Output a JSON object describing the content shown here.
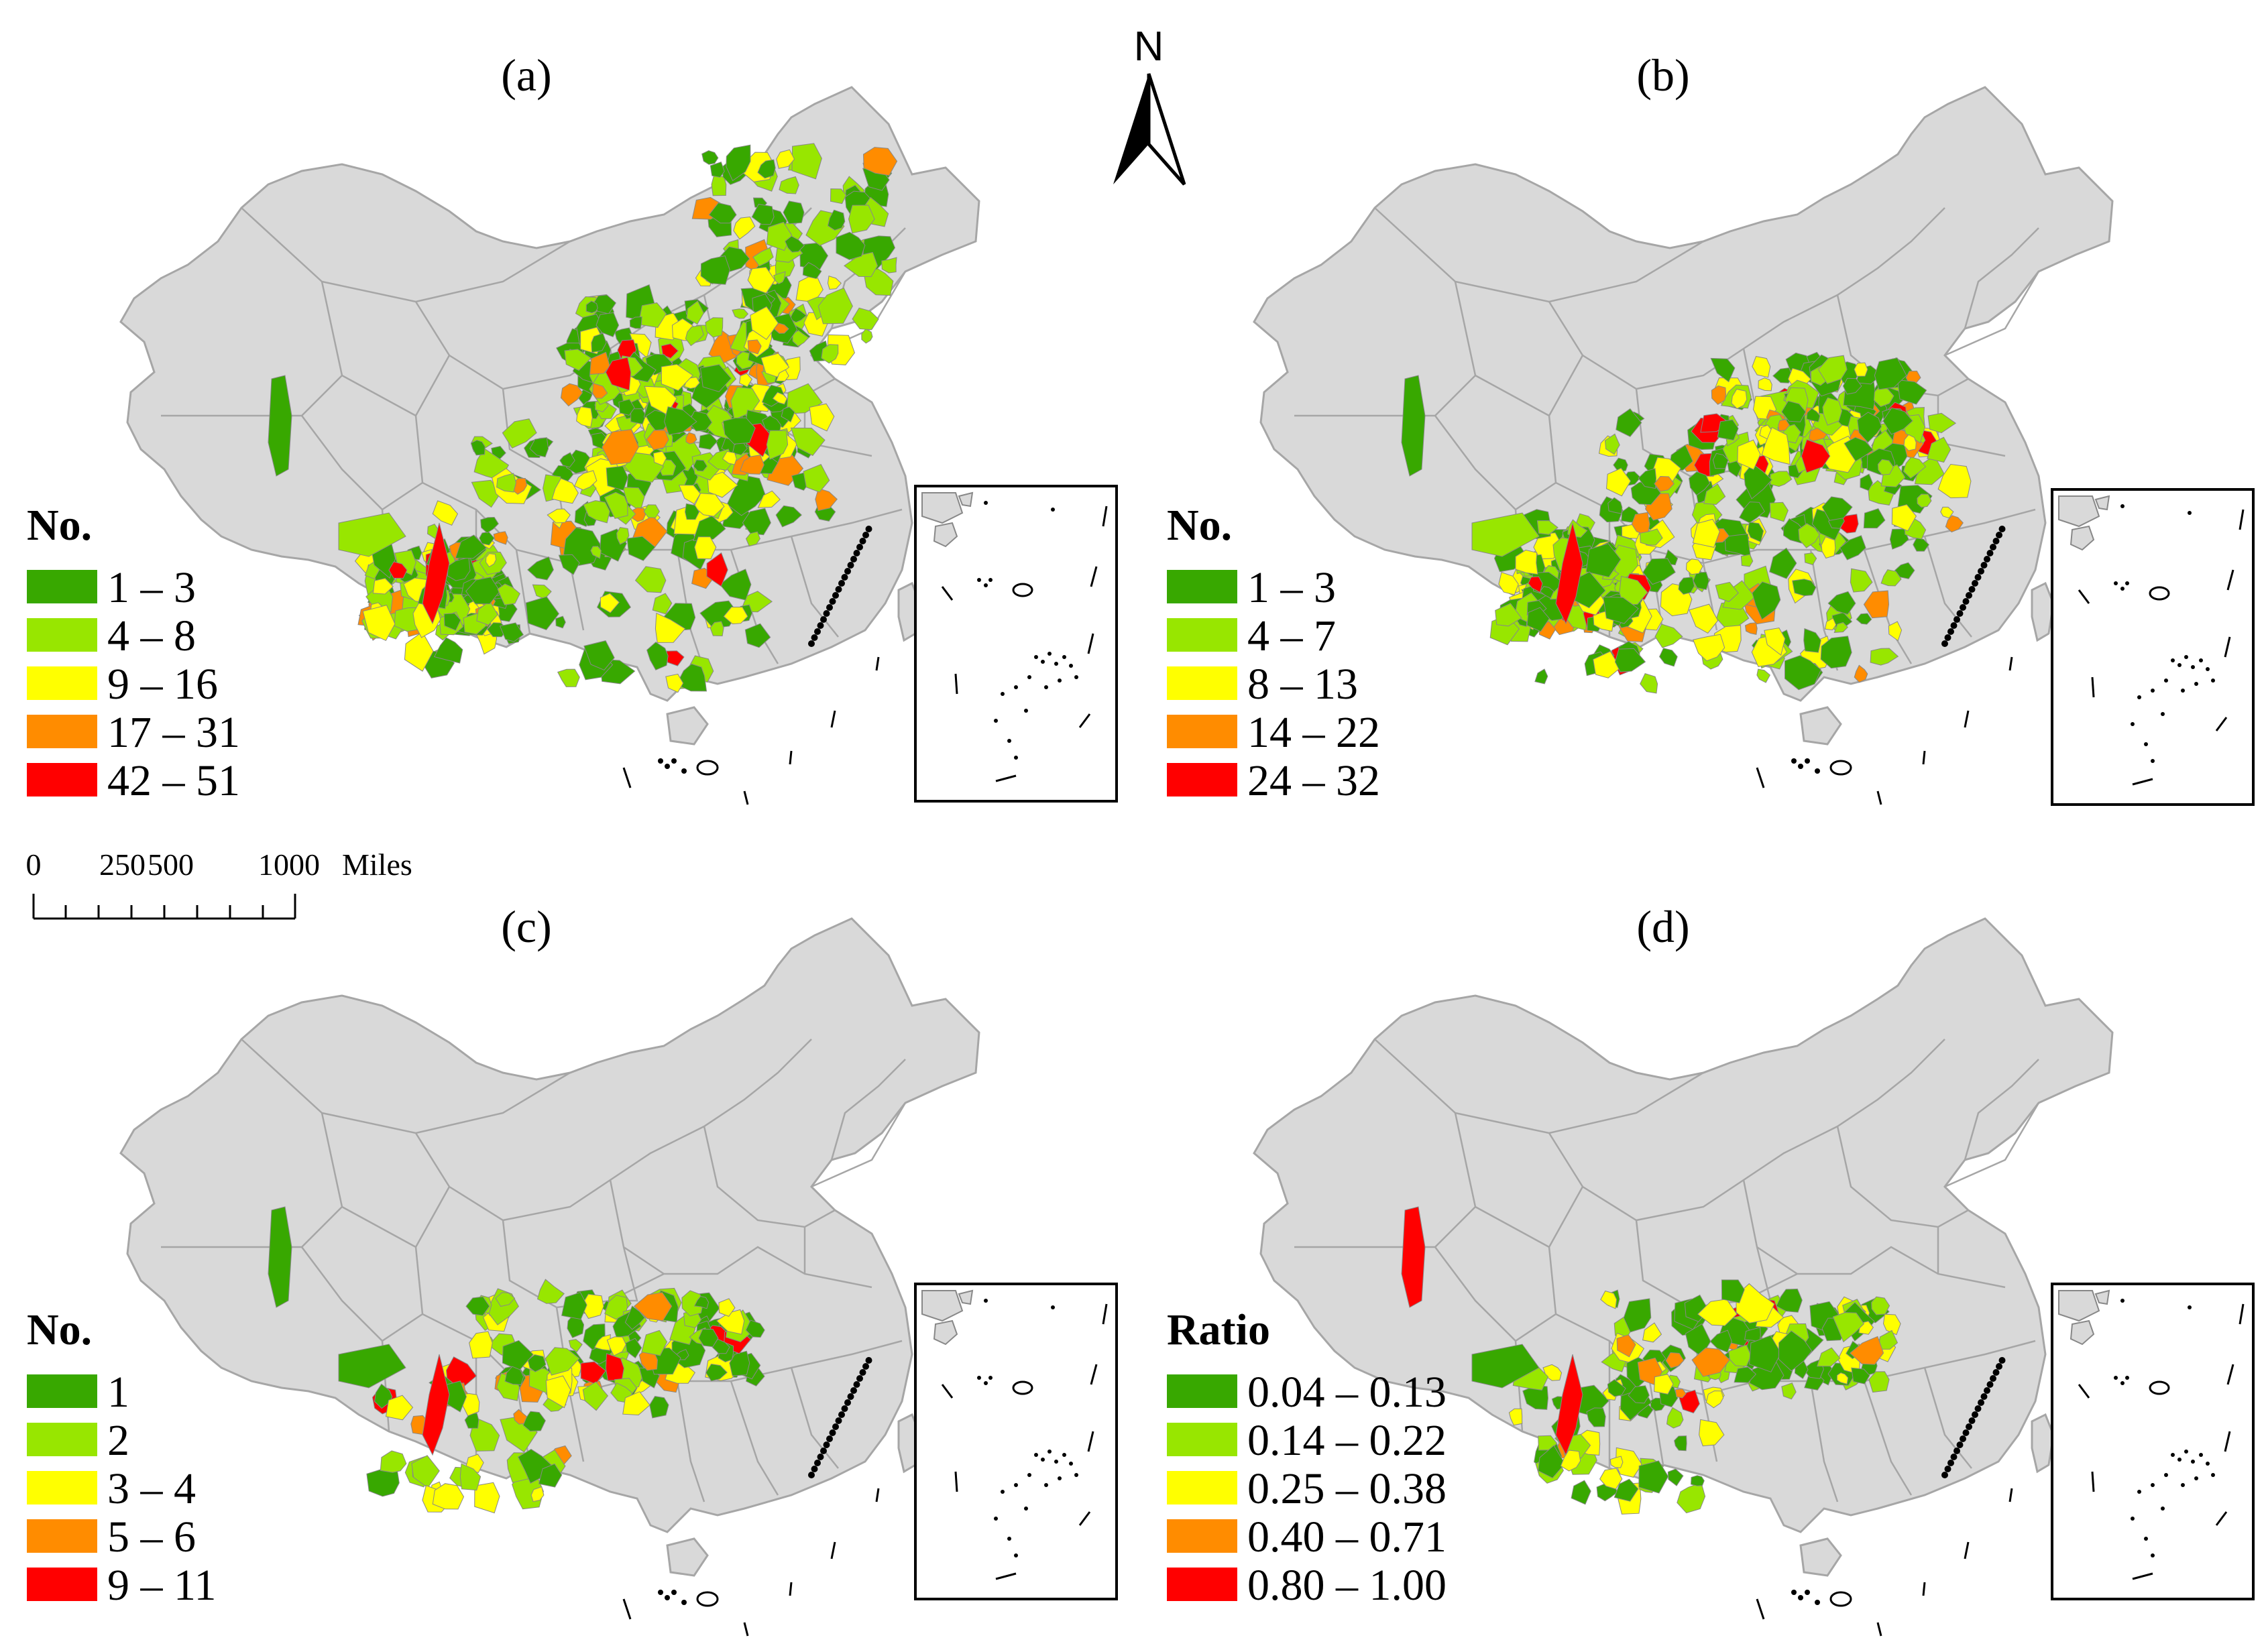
{
  "north_arrow": {
    "label": "N"
  },
  "scale_bar": {
    "ticks": [
      "0",
      "250",
      "500",
      "1000"
    ],
    "unit": "Miles"
  },
  "colors": {
    "land": "#d9d9d9",
    "border": "#a6a6a6",
    "class1": "#38a800",
    "class2": "#98e600",
    "class3": "#ffff00",
    "class4": "#ff8c00",
    "class5": "#ff0000"
  },
  "panels": [
    {
      "label": "(a)",
      "legend_title": "No.",
      "classes": [
        "1 – 3",
        "4 – 8",
        "9 – 16",
        "17 – 31",
        "42 – 51"
      ],
      "coverage": "wide"
    },
    {
      "label": "(b)",
      "legend_title": "No.",
      "classes": [
        "1 – 3",
        "4 – 7",
        "8 – 13",
        "14 – 22",
        "24 – 32"
      ],
      "coverage": "south"
    },
    {
      "label": "(c)",
      "legend_title": "No.",
      "classes": [
        "1",
        "2",
        "3 – 4",
        "5 – 6",
        "9 – 11"
      ],
      "coverage": "sparse"
    },
    {
      "label": "(d)",
      "legend_title": "Ratio",
      "classes": [
        "0.04 – 0.13",
        "0.14 – 0.22",
        "0.25 – 0.38",
        "0.40 – 0.71",
        "0.80 – 1.00"
      ],
      "coverage": "sparse"
    }
  ]
}
